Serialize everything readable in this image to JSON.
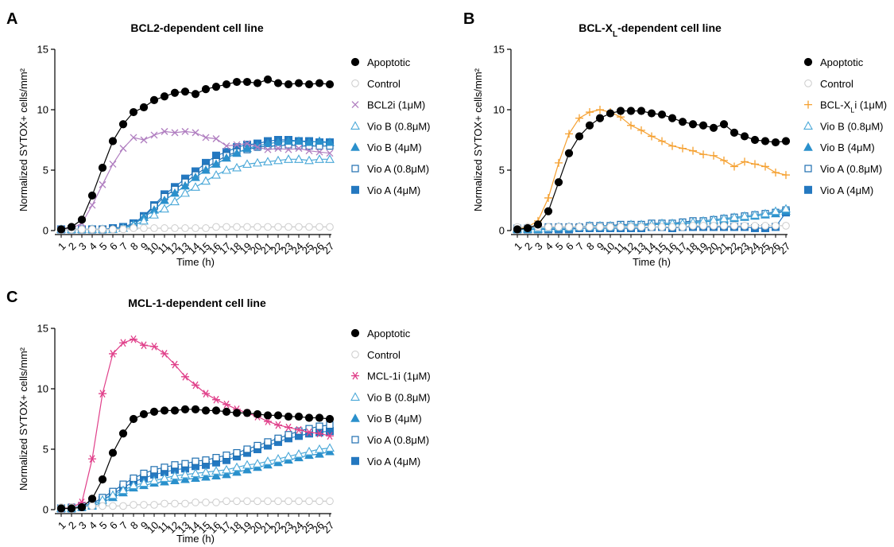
{
  "chart_data": [
    {
      "type": "line",
      "panel": "A",
      "title": "BCL2-dependent cell line",
      "xlabel": "Time (h)",
      "ylabel": "Normalized SYTOX+ cells/mm²",
      "ylim": [
        0,
        15
      ],
      "yticks": [
        0,
        5,
        10,
        15
      ],
      "x": [
        1,
        2,
        3,
        4,
        5,
        6,
        7,
        8,
        9,
        10,
        11,
        12,
        13,
        14,
        15,
        16,
        17,
        18,
        19,
        20,
        21,
        22,
        23,
        24,
        25,
        26,
        27
      ],
      "legend_position": "right",
      "series": [
        {
          "name": "Apoptotic",
          "color": "#000000",
          "marker": "circle-filled",
          "values": [
            0.1,
            0.3,
            0.9,
            2.9,
            5.2,
            7.4,
            8.8,
            9.8,
            10.2,
            10.8,
            11.1,
            11.4,
            11.5,
            11.3,
            11.7,
            11.9,
            12.1,
            12.3,
            12.3,
            12.2,
            12.5,
            12.2,
            12.1,
            12.2,
            12.1,
            12.2,
            12.1
          ]
        },
        {
          "name": "Control",
          "color": "#cccccc",
          "marker": "circle-open",
          "values": [
            0.1,
            0.1,
            0.1,
            0.1,
            0.1,
            0.1,
            0.1,
            0.2,
            0.2,
            0.2,
            0.2,
            0.2,
            0.2,
            0.2,
            0.2,
            0.3,
            0.3,
            0.3,
            0.3,
            0.3,
            0.3,
            0.3,
            0.3,
            0.3,
            0.3,
            0.3,
            0.3
          ]
        },
        {
          "name": "BCL2i (1μM)",
          "color": "#b07ec0",
          "marker": "x",
          "values": [
            0.1,
            0.2,
            0.6,
            2.1,
            3.8,
            5.5,
            6.8,
            7.7,
            7.5,
            7.9,
            8.2,
            8.1,
            8.2,
            8.1,
            7.7,
            7.6,
            7.0,
            7.1,
            7.2,
            6.9,
            6.7,
            6.8,
            6.7,
            6.8,
            6.6,
            6.5,
            6.4
          ]
        },
        {
          "name": "Vio B (0.8μM)",
          "color": "#4aa8d8",
          "marker": "triangle-open",
          "values": [
            0.1,
            0.1,
            0.1,
            0.1,
            0.1,
            0.1,
            0.2,
            0.4,
            0.8,
            1.3,
            1.8,
            2.4,
            3.1,
            3.6,
            4.1,
            4.6,
            5.0,
            5.2,
            5.5,
            5.6,
            5.7,
            5.8,
            5.9,
            5.9,
            5.8,
            5.9,
            5.9
          ]
        },
        {
          "name": "Vio B (4μM)",
          "color": "#2a90cc",
          "marker": "triangle-filled",
          "values": [
            0.1,
            0.1,
            0.1,
            0.1,
            0.1,
            0.1,
            0.2,
            0.5,
            1.1,
            1.7,
            2.5,
            3.1,
            3.7,
            4.4,
            5.0,
            5.5,
            6.0,
            6.4,
            6.8,
            7.0,
            7.2,
            7.3,
            7.4,
            7.4,
            7.3,
            7.4,
            7.3
          ]
        },
        {
          "name": "Vio A (0.8μM)",
          "color": "#1f6fb0",
          "marker": "square-open",
          "values": [
            0.1,
            0.1,
            0.1,
            0.1,
            0.1,
            0.1,
            0.2,
            0.5,
            1.1,
            2.0,
            2.8,
            3.4,
            4.0,
            4.6,
            5.2,
            5.7,
            6.2,
            6.5,
            6.7,
            6.9,
            7.0,
            7.0,
            7.1,
            7.0,
            7.0,
            7.0,
            7.0
          ]
        },
        {
          "name": "Vio A (4μM)",
          "color": "#2478c0",
          "marker": "square-filled",
          "values": [
            0.1,
            0.1,
            0.1,
            0.1,
            0.1,
            0.2,
            0.3,
            0.6,
            1.2,
            2.1,
            3.0,
            3.6,
            4.3,
            4.9,
            5.6,
            6.2,
            6.5,
            6.9,
            7.1,
            7.2,
            7.4,
            7.5,
            7.5,
            7.4,
            7.4,
            7.3,
            7.3
          ]
        }
      ]
    },
    {
      "type": "line",
      "panel": "B",
      "title": "BCL-X",
      "title_sub": "L",
      "title_rest": "-dependent cell line",
      "xlabel": "Time (h)",
      "ylabel": "Normalized SYTOX+ cells/mm²",
      "ylim": [
        0,
        15
      ],
      "yticks": [
        0,
        5,
        10,
        15
      ],
      "x": [
        1,
        2,
        3,
        4,
        5,
        6,
        7,
        8,
        9,
        10,
        11,
        12,
        13,
        14,
        15,
        16,
        17,
        18,
        19,
        20,
        21,
        22,
        23,
        24,
        25,
        26,
        27
      ],
      "legend_position": "right",
      "series": [
        {
          "name": "Apoptotic",
          "color": "#000000",
          "marker": "circle-filled",
          "values": [
            0.1,
            0.2,
            0.5,
            1.6,
            4.0,
            6.4,
            7.8,
            8.7,
            9.3,
            9.7,
            9.9,
            9.9,
            9.9,
            9.7,
            9.6,
            9.3,
            9.0,
            8.8,
            8.7,
            8.5,
            8.8,
            8.1,
            7.8,
            7.5,
            7.4,
            7.3,
            7.4
          ]
        },
        {
          "name": "Control",
          "color": "#cccccc",
          "marker": "circle-open",
          "values": [
            0.3,
            0.3,
            0.3,
            0.3,
            0.3,
            0.3,
            0.3,
            0.3,
            0.3,
            0.3,
            0.3,
            0.3,
            0.3,
            0.3,
            0.3,
            0.3,
            0.3,
            0.4,
            0.4,
            0.4,
            0.4,
            0.4,
            0.4,
            0.4,
            0.4,
            0.4,
            0.4
          ]
        },
        {
          "name": "BCL-XLi (1μM)",
          "label": "BCL-X",
          "label_sub": "L",
          "label_rest": "i (1μM)",
          "color": "#f5a030",
          "marker": "plus",
          "values": [
            0.1,
            0.3,
            0.8,
            2.7,
            5.6,
            8.0,
            9.3,
            9.8,
            10.0,
            9.8,
            9.4,
            8.7,
            8.3,
            7.8,
            7.4,
            7.0,
            6.8,
            6.6,
            6.3,
            6.2,
            5.8,
            5.3,
            5.7,
            5.5,
            5.3,
            4.8,
            4.6
          ]
        },
        {
          "name": "Vio B (0.8μM)",
          "color": "#4aa8d8",
          "marker": "triangle-open",
          "values": [
            0.2,
            0.2,
            0.2,
            0.2,
            0.3,
            0.3,
            0.3,
            0.4,
            0.4,
            0.4,
            0.4,
            0.5,
            0.5,
            0.5,
            0.6,
            0.6,
            0.6,
            0.7,
            0.8,
            0.9,
            1.0,
            1.1,
            1.2,
            1.3,
            1.4,
            1.6,
            1.8
          ]
        },
        {
          "name": "Vio B (4μM)",
          "color": "#2a90cc",
          "marker": "triangle-filled",
          "values": [
            0.1,
            0.1,
            0.1,
            0.2,
            0.2,
            0.2,
            0.3,
            0.3,
            0.3,
            0.3,
            0.4,
            0.4,
            0.4,
            0.5,
            0.5,
            0.5,
            0.6,
            0.6,
            0.7,
            0.8,
            0.9,
            1.0,
            1.1,
            1.2,
            1.3,
            1.4,
            1.6
          ]
        },
        {
          "name": "Vio A (0.8μM)",
          "color": "#1f6fb0",
          "marker": "square-open",
          "values": [
            0.2,
            0.2,
            0.3,
            0.3,
            0.3,
            0.3,
            0.3,
            0.4,
            0.4,
            0.4,
            0.5,
            0.5,
            0.5,
            0.6,
            0.6,
            0.6,
            0.7,
            0.8,
            0.8,
            0.9,
            1.0,
            1.1,
            1.2,
            1.3,
            1.4,
            1.5,
            1.7
          ]
        },
        {
          "name": "Vio A (4μM)",
          "color": "#2478c0",
          "marker": "square-filled",
          "values": [
            0.1,
            0.1,
            0.1,
            0.1,
            0.1,
            0.1,
            0.2,
            0.2,
            0.2,
            0.2,
            0.2,
            0.2,
            0.2,
            0.3,
            0.3,
            0.2,
            0.3,
            0.3,
            0.3,
            0.3,
            0.3,
            0.3,
            0.3,
            0.2,
            0.2,
            0.3,
            1.5
          ]
        }
      ]
    },
    {
      "type": "line",
      "panel": "C",
      "title": "MCL-1-dependent cell line",
      "xlabel": "Time (h)",
      "ylabel": "Normalized SYTOX+ cells/mm²",
      "ylim": [
        0,
        15
      ],
      "yticks": [
        0,
        5,
        10,
        15
      ],
      "x": [
        1,
        2,
        3,
        4,
        5,
        6,
        7,
        8,
        9,
        10,
        11,
        12,
        13,
        14,
        15,
        16,
        17,
        18,
        19,
        20,
        21,
        22,
        23,
        24,
        25,
        26,
        27
      ],
      "legend_position": "right",
      "series": [
        {
          "name": "Apoptotic",
          "color": "#000000",
          "marker": "circle-filled",
          "values": [
            0.1,
            0.1,
            0.2,
            0.9,
            2.5,
            4.7,
            6.3,
            7.5,
            7.9,
            8.1,
            8.2,
            8.2,
            8.3,
            8.3,
            8.2,
            8.2,
            8.1,
            8.0,
            8.0,
            7.9,
            7.8,
            7.8,
            7.7,
            7.7,
            7.6,
            7.6,
            7.5
          ]
        },
        {
          "name": "Control",
          "color": "#cccccc",
          "marker": "circle-open",
          "values": [
            0.2,
            0.2,
            0.2,
            0.3,
            0.3,
            0.3,
            0.3,
            0.4,
            0.4,
            0.4,
            0.5,
            0.5,
            0.5,
            0.6,
            0.6,
            0.6,
            0.7,
            0.7,
            0.7,
            0.7,
            0.7,
            0.7,
            0.7,
            0.7,
            0.7,
            0.7,
            0.7
          ]
        },
        {
          "name": "MCL-1i (1μM)",
          "color": "#e0408a",
          "marker": "asterisk",
          "values": [
            0.1,
            0.2,
            0.6,
            4.2,
            9.6,
            12.9,
            13.8,
            14.1,
            13.6,
            13.5,
            12.9,
            12.0,
            11.0,
            10.3,
            9.6,
            9.1,
            8.7,
            8.3,
            8.0,
            7.7,
            7.3,
            7.0,
            6.8,
            6.6,
            6.4,
            6.3,
            6.1
          ]
        },
        {
          "name": "Vio B (0.8μM)",
          "color": "#4aa8d8",
          "marker": "triangle-open",
          "values": [
            0.1,
            0.1,
            0.2,
            0.4,
            0.8,
            1.2,
            1.6,
            2.0,
            2.2,
            2.4,
            2.6,
            2.8,
            2.9,
            3.0,
            3.1,
            3.2,
            3.3,
            3.5,
            3.7,
            3.8,
            4.0,
            4.2,
            4.4,
            4.6,
            4.8,
            5.0,
            5.1
          ]
        },
        {
          "name": "Vio B (4μM)",
          "color": "#2a90cc",
          "marker": "triangle-filled",
          "values": [
            0.1,
            0.1,
            0.2,
            0.3,
            0.6,
            1.0,
            1.4,
            1.8,
            2.0,
            2.2,
            2.3,
            2.4,
            2.5,
            2.6,
            2.7,
            2.8,
            2.9,
            3.1,
            3.3,
            3.5,
            3.7,
            3.9,
            4.1,
            4.3,
            4.5,
            4.6,
            4.8
          ]
        },
        {
          "name": "Vio A (0.8μM)",
          "color": "#1f6fb0",
          "marker": "square-open",
          "values": [
            0.1,
            0.2,
            0.3,
            0.5,
            1.0,
            1.5,
            2.1,
            2.6,
            3.0,
            3.3,
            3.5,
            3.7,
            3.8,
            4.0,
            4.1,
            4.3,
            4.5,
            4.7,
            5.0,
            5.3,
            5.6,
            5.9,
            6.2,
            6.5,
            6.7,
            6.9,
            7.0
          ]
        },
        {
          "name": "Vio A (4μM)",
          "color": "#2478c0",
          "marker": "square-filled",
          "values": [
            0.1,
            0.1,
            0.2,
            0.4,
            0.8,
            1.3,
            1.8,
            2.3,
            2.6,
            2.9,
            3.1,
            3.3,
            3.4,
            3.6,
            3.7,
            3.9,
            4.1,
            4.4,
            4.7,
            5.0,
            5.3,
            5.6,
            5.9,
            6.1,
            6.3,
            6.4,
            6.5
          ]
        }
      ]
    }
  ]
}
